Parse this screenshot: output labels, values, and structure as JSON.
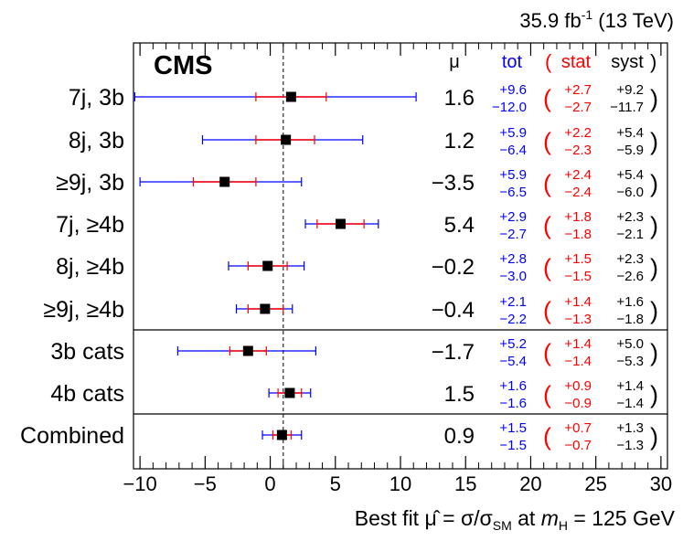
{
  "header": {
    "lumi_label": "35.9 fb",
    "lumi_exp": "-1",
    "lumi_energy": " (13 TeV)"
  },
  "experiment": "CMS",
  "column_headers": {
    "mu": "μ",
    "tot": "tot",
    "stat_open": "(",
    "stat": "stat",
    "syst": "syst",
    "syst_close": ")"
  },
  "colors": {
    "tot": "#0000ff",
    "stat": "#ff0000",
    "syst": "#000000",
    "axis": "#000000"
  },
  "chart_data": {
    "type": "forest-plot",
    "xlabel": "Best fit μ̂ = σ/σSM at mH = 125 GeV",
    "xlim": [
      -10.5,
      30.5
    ],
    "xticks": [
      -10,
      -5,
      0,
      5,
      10,
      15,
      20,
      25,
      30
    ],
    "xtick_labels": [
      "−10",
      "−5",
      "0",
      "5",
      "10",
      "15",
      "20",
      "25",
      "30"
    ],
    "reference_line": 1,
    "rows": [
      {
        "label": "7j, 3b",
        "mu": 1.6,
        "mu_label": "1.6",
        "tot_up": 9.6,
        "tot_dn": 12.0,
        "stat_up": 2.7,
        "stat_dn": 2.7,
        "syst_up": 9.2,
        "syst_dn": 11.7,
        "tot_up_label": "+9.6",
        "tot_dn_label": "−12.0",
        "stat_up_label": "+2.7",
        "stat_dn_label": "−2.7",
        "syst_up_label": "+9.2",
        "syst_dn_label": "−11.7"
      },
      {
        "label": "8j, 3b",
        "mu": 1.2,
        "mu_label": "1.2",
        "tot_up": 5.9,
        "tot_dn": 6.4,
        "stat_up": 2.2,
        "stat_dn": 2.3,
        "syst_up": 5.4,
        "syst_dn": 5.9,
        "tot_up_label": "+5.9",
        "tot_dn_label": "−6.4",
        "stat_up_label": "+2.2",
        "stat_dn_label": "−2.3",
        "syst_up_label": "+5.4",
        "syst_dn_label": "−5.9"
      },
      {
        "label": "≥9j, 3b",
        "mu": -3.5,
        "mu_label": "−3.5",
        "tot_up": 5.9,
        "tot_dn": 6.5,
        "stat_up": 2.4,
        "stat_dn": 2.4,
        "syst_up": 5.4,
        "syst_dn": 6.0,
        "tot_up_label": "+5.9",
        "tot_dn_label": "−6.5",
        "stat_up_label": "+2.4",
        "stat_dn_label": "−2.4",
        "syst_up_label": "+5.4",
        "syst_dn_label": "−6.0"
      },
      {
        "label": "7j, ≥4b",
        "mu": 5.4,
        "mu_label": "5.4",
        "tot_up": 2.9,
        "tot_dn": 2.7,
        "stat_up": 1.8,
        "stat_dn": 1.8,
        "syst_up": 2.3,
        "syst_dn": 2.1,
        "tot_up_label": "+2.9",
        "tot_dn_label": "−2.7",
        "stat_up_label": "+1.8",
        "stat_dn_label": "−1.8",
        "syst_up_label": "+2.3",
        "syst_dn_label": "−2.1"
      },
      {
        "label": "8j, ≥4b",
        "mu": -0.2,
        "mu_label": "−0.2",
        "tot_up": 2.8,
        "tot_dn": 3.0,
        "stat_up": 1.5,
        "stat_dn": 1.5,
        "syst_up": 2.3,
        "syst_dn": 2.6,
        "tot_up_label": "+2.8",
        "tot_dn_label": "−3.0",
        "stat_up_label": "+1.5",
        "stat_dn_label": "−1.5",
        "syst_up_label": "+2.3",
        "syst_dn_label": "−2.6"
      },
      {
        "label": "≥9j, ≥4b",
        "mu": -0.4,
        "mu_label": "−0.4",
        "tot_up": 2.1,
        "tot_dn": 2.2,
        "stat_up": 1.4,
        "stat_dn": 1.3,
        "syst_up": 1.6,
        "syst_dn": 1.8,
        "tot_up_label": "+2.1",
        "tot_dn_label": "−2.2",
        "stat_up_label": "+1.4",
        "stat_dn_label": "−1.3",
        "syst_up_label": "+1.6",
        "syst_dn_label": "−1.8"
      },
      {
        "label": "3b cats",
        "mu": -1.7,
        "mu_label": "−1.7",
        "tot_up": 5.2,
        "tot_dn": 5.4,
        "stat_up": 1.4,
        "stat_dn": 1.4,
        "syst_up": 5.0,
        "syst_dn": 5.3,
        "tot_up_label": "+5.2",
        "tot_dn_label": "−5.4",
        "stat_up_label": "+1.4",
        "stat_dn_label": "−1.4",
        "syst_up_label": "+5.0",
        "syst_dn_label": "−5.3"
      },
      {
        "label": "4b cats",
        "mu": 1.5,
        "mu_label": "1.5",
        "tot_up": 1.6,
        "tot_dn": 1.6,
        "stat_up": 0.9,
        "stat_dn": 0.9,
        "syst_up": 1.4,
        "syst_dn": 1.4,
        "tot_up_label": "+1.6",
        "tot_dn_label": "−1.6",
        "stat_up_label": "+0.9",
        "stat_dn_label": "−0.9",
        "syst_up_label": "+1.4",
        "syst_dn_label": "−1.4"
      },
      {
        "label": "Combined",
        "mu": 0.9,
        "mu_label": "0.9",
        "tot_up": 1.5,
        "tot_dn": 1.5,
        "stat_up": 0.7,
        "stat_dn": 0.7,
        "syst_up": 1.3,
        "syst_dn": 1.3,
        "tot_up_label": "+1.5",
        "tot_dn_label": "−1.5",
        "stat_up_label": "+0.7",
        "stat_dn_label": "−0.7",
        "syst_up_label": "+1.3",
        "syst_dn_label": "−1.3"
      }
    ],
    "group_separators_after_row": [
      5,
      7
    ]
  }
}
